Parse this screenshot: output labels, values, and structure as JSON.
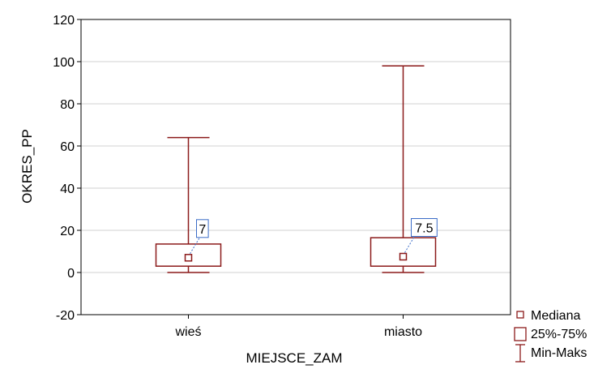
{
  "chart_data": {
    "type": "boxplot",
    "xlabel": "MIEJSCE_ZAM",
    "ylabel": "OKRES_PP",
    "ylim": [
      -20,
      120
    ],
    "yticks": [
      -20,
      0,
      20,
      40,
      60,
      80,
      100,
      120
    ],
    "grid": true,
    "categories": [
      "wieś",
      "miasto"
    ],
    "boxes": [
      {
        "category": "wieś",
        "min": 0,
        "q1": 3,
        "median": 7,
        "q3": 13.5,
        "max": 64,
        "median_label": "7"
      },
      {
        "category": "miasto",
        "min": 0,
        "q1": 3,
        "median": 7.5,
        "q3": 16.5,
        "max": 98,
        "median_label": "7.5"
      }
    ],
    "legend": {
      "position": "bottom-right",
      "entries": [
        "Mediana",
        "25%-75%",
        "Min-Maks"
      ]
    },
    "colors": {
      "box": "#8b1a1a",
      "label_border": "#3a6cc7",
      "grid": "#d0d0d0"
    }
  }
}
